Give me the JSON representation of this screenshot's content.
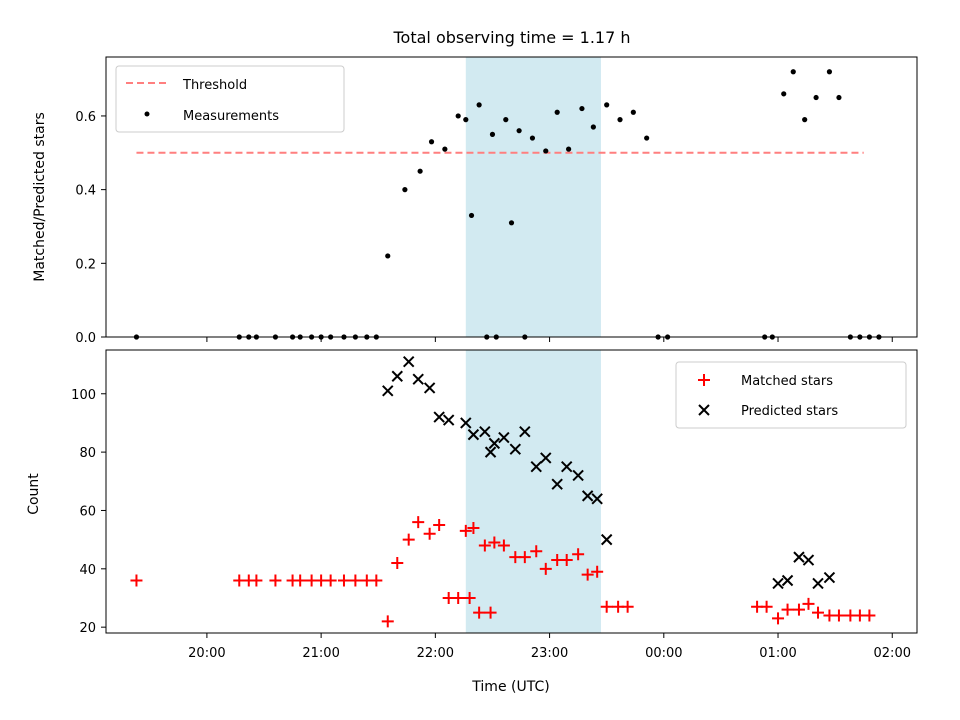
{
  "chart_data": [
    {
      "type": "scatter",
      "title": "Total observing time = 1.17 h",
      "ylabel": "Matched/Predicted stars",
      "xlabel": "",
      "ylim": [
        0,
        0.76
      ],
      "yticks": [
        0.0,
        0.2,
        0.4,
        0.6
      ],
      "ytick_labels": [
        "0.0",
        "0.2",
        "0.4",
        "0.6"
      ],
      "grid": false,
      "legend": "upper-left",
      "shaded_interval": [
        "22:16",
        "23:27"
      ],
      "shade_color": "#add8e6",
      "threshold": {
        "name": "Threshold",
        "y": 0.5,
        "x_start": "19:23",
        "x_end": "01:45",
        "color": "#ff7f7f",
        "style": "dashed"
      },
      "series": [
        {
          "name": "Measurements",
          "marker": "dot",
          "color": "#000000",
          "points": [
            [
              "19:23",
              0.0
            ],
            [
              "20:17",
              0.0
            ],
            [
              "20:22",
              0.0
            ],
            [
              "20:26",
              0.0
            ],
            [
              "20:36",
              0.0
            ],
            [
              "20:45",
              0.0
            ],
            [
              "20:49",
              0.0
            ],
            [
              "20:55",
              0.0
            ],
            [
              "21:00",
              0.0
            ],
            [
              "21:05",
              0.0
            ],
            [
              "21:12",
              0.0
            ],
            [
              "21:18",
              0.0
            ],
            [
              "21:24",
              0.0
            ],
            [
              "21:29",
              0.0
            ],
            [
              "21:35",
              0.22
            ],
            [
              "21:44",
              0.4
            ],
            [
              "21:52",
              0.45
            ],
            [
              "21:58",
              0.53
            ],
            [
              "22:05",
              0.51
            ],
            [
              "22:12",
              0.6
            ],
            [
              "22:19",
              0.33
            ],
            [
              "22:27",
              0.0
            ],
            [
              "22:32",
              0.0
            ],
            [
              "22:40",
              0.31
            ],
            [
              "22:47",
              0.0
            ],
            [
              "22:16",
              0.59
            ],
            [
              "22:23",
              0.63
            ],
            [
              "22:30",
              0.55
            ],
            [
              "22:37",
              0.59
            ],
            [
              "22:44",
              0.56
            ],
            [
              "22:51",
              0.54
            ],
            [
              "22:58",
              0.505
            ],
            [
              "23:04",
              0.61
            ],
            [
              "23:10",
              0.51
            ],
            [
              "23:17",
              0.62
            ],
            [
              "23:23",
              0.57
            ],
            [
              "23:30",
              0.63
            ],
            [
              "23:37",
              0.59
            ],
            [
              "23:44",
              0.61
            ],
            [
              "23:51",
              0.54
            ],
            [
              "23:57",
              0.0
            ],
            [
              "00:02",
              0.0
            ],
            [
              "00:53",
              0.0
            ],
            [
              "00:57",
              0.0
            ],
            [
              "01:03",
              0.66
            ],
            [
              "01:08",
              0.72
            ],
            [
              "01:14",
              0.59
            ],
            [
              "01:20",
              0.65
            ],
            [
              "01:27",
              0.72
            ],
            [
              "01:32",
              0.65
            ],
            [
              "01:38",
              0.0
            ],
            [
              "01:43",
              0.0
            ],
            [
              "01:48",
              0.0
            ],
            [
              "01:53",
              0.0
            ]
          ]
        }
      ]
    },
    {
      "type": "scatter",
      "title": "",
      "ylabel": "Count",
      "xlabel": "Time (UTC)",
      "ylim": [
        18,
        115
      ],
      "yticks": [
        20,
        40,
        60,
        80,
        100
      ],
      "ytick_labels": [
        "20",
        "40",
        "60",
        "80",
        "100"
      ],
      "xticks": [
        "20:00",
        "21:00",
        "22:00",
        "23:00",
        "00:00",
        "01:00",
        "02:00"
      ],
      "grid": false,
      "legend": "upper-right",
      "shaded_interval": [
        "22:16",
        "23:27"
      ],
      "shade_color": "#add8e6",
      "series": [
        {
          "name": "Matched stars",
          "marker": "plus",
          "color": "#ff0000",
          "points": [
            [
              "19:23",
              36
            ],
            [
              "20:17",
              36
            ],
            [
              "20:22",
              36
            ],
            [
              "20:26",
              36
            ],
            [
              "20:36",
              36
            ],
            [
              "20:45",
              36
            ],
            [
              "20:49",
              36
            ],
            [
              "20:55",
              36
            ],
            [
              "21:00",
              36
            ],
            [
              "21:05",
              36
            ],
            [
              "21:12",
              36
            ],
            [
              "21:18",
              36
            ],
            [
              "21:24",
              36
            ],
            [
              "21:29",
              36
            ],
            [
              "21:35",
              22
            ],
            [
              "21:40",
              42
            ],
            [
              "21:46",
              50
            ],
            [
              "21:51",
              56
            ],
            [
              "21:57",
              52
            ],
            [
              "22:02",
              55
            ],
            [
              "22:07",
              30
            ],
            [
              "22:12",
              30
            ],
            [
              "22:18",
              30
            ],
            [
              "22:23",
              25
            ],
            [
              "22:29",
              25
            ],
            [
              "22:16",
              53
            ],
            [
              "22:20",
              54
            ],
            [
              "22:26",
              48
            ],
            [
              "22:31",
              49
            ],
            [
              "22:36",
              48
            ],
            [
              "22:42",
              44
            ],
            [
              "22:47",
              44
            ],
            [
              "22:53",
              46
            ],
            [
              "22:58",
              40
            ],
            [
              "23:04",
              43
            ],
            [
              "23:09",
              43
            ],
            [
              "23:15",
              45
            ],
            [
              "23:20",
              38
            ],
            [
              "23:25",
              39
            ],
            [
              "23:30",
              27
            ],
            [
              "23:36",
              27
            ],
            [
              "23:41",
              27
            ],
            [
              "00:49",
              27
            ],
            [
              "00:54",
              27
            ],
            [
              "01:00",
              23
            ],
            [
              "01:05",
              26
            ],
            [
              "01:11",
              26
            ],
            [
              "01:16",
              28
            ],
            [
              "01:21",
              25
            ],
            [
              "01:27",
              24
            ],
            [
              "01:32",
              24
            ],
            [
              "01:38",
              24
            ],
            [
              "01:43",
              24
            ],
            [
              "01:48",
              24
            ]
          ]
        },
        {
          "name": "Predicted stars",
          "marker": "x",
          "color": "#000000",
          "points": [
            [
              "21:35",
              101
            ],
            [
              "21:40",
              106
            ],
            [
              "21:46",
              111
            ],
            [
              "21:51",
              105
            ],
            [
              "21:57",
              102
            ],
            [
              "22:02",
              92
            ],
            [
              "22:07",
              91
            ],
            [
              "22:29",
              80
            ],
            [
              "22:16",
              90
            ],
            [
              "22:20",
              86
            ],
            [
              "22:26",
              87
            ],
            [
              "22:31",
              83
            ],
            [
              "22:36",
              85
            ],
            [
              "22:42",
              81
            ],
            [
              "22:47",
              87
            ],
            [
              "22:53",
              75
            ],
            [
              "22:58",
              78
            ],
            [
              "23:04",
              69
            ],
            [
              "23:09",
              75
            ],
            [
              "23:15",
              72
            ],
            [
              "23:20",
              65
            ],
            [
              "23:25",
              64
            ],
            [
              "23:30",
              50
            ],
            [
              "01:00",
              35
            ],
            [
              "01:05",
              36
            ],
            [
              "01:11",
              44
            ],
            [
              "01:16",
              43
            ],
            [
              "01:21",
              35
            ],
            [
              "01:27",
              37
            ]
          ]
        }
      ]
    }
  ]
}
